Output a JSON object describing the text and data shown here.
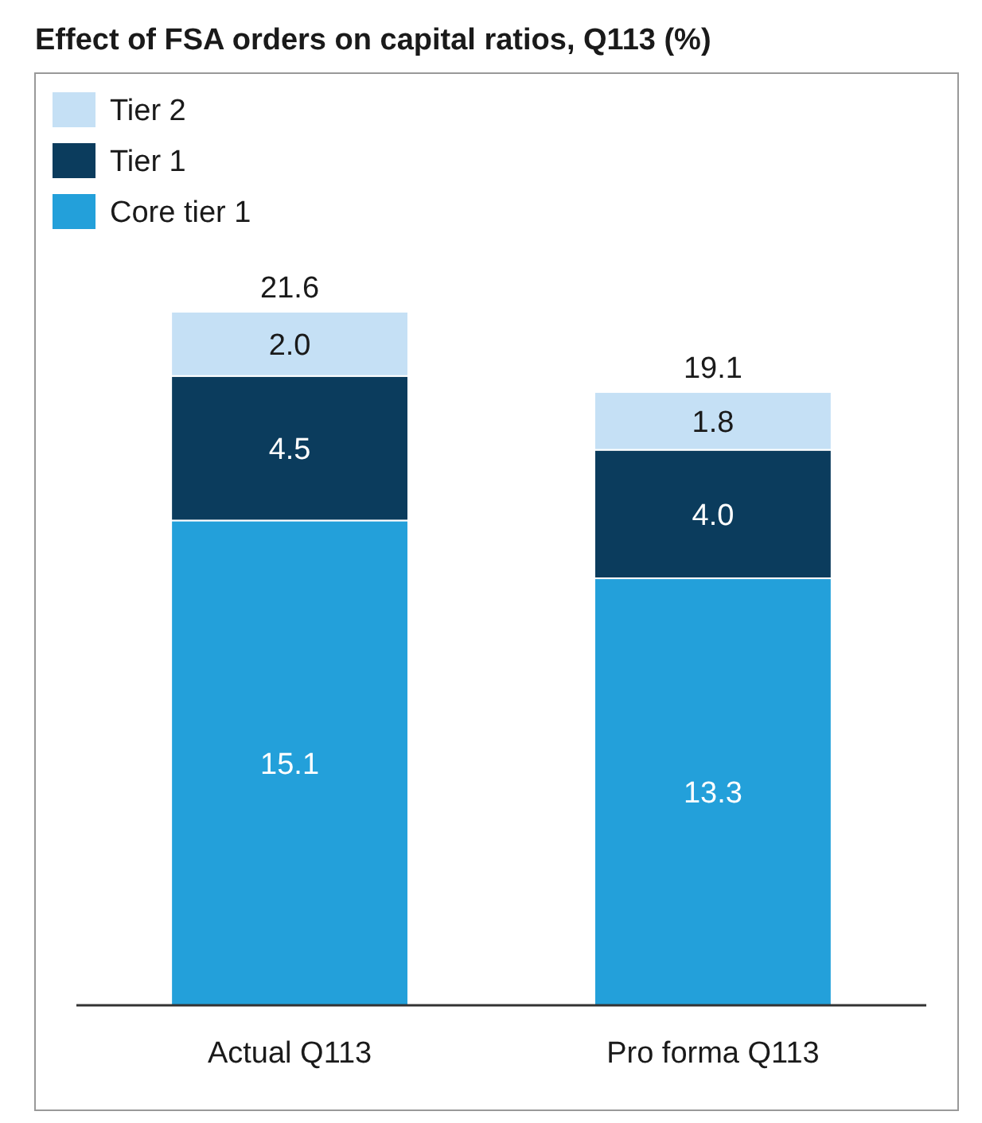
{
  "chart_data": {
    "type": "bar",
    "title": "Effect of FSA orders on capital ratios, Q113 (%)",
    "categories": [
      "Actual Q113",
      "Pro forma Q113"
    ],
    "stacked": true,
    "legend": "top left",
    "totals": [
      "21.6",
      "19.1"
    ],
    "series": [
      {
        "name": "Core tier 1",
        "color": "#23a0da",
        "values": [
          15.1,
          13.3
        ],
        "value_labels": [
          "15.1",
          "13.3"
        ]
      },
      {
        "name": "Tier 1",
        "color": "#0b3c5d",
        "values": [
          4.5,
          4.0
        ],
        "value_labels": [
          "4.5",
          "4.0"
        ]
      },
      {
        "name": "Tier 2",
        "color": "#c5e0f5",
        "values": [
          2.0,
          1.8
        ],
        "value_labels": [
          "2.0",
          "1.8"
        ]
      }
    ]
  }
}
